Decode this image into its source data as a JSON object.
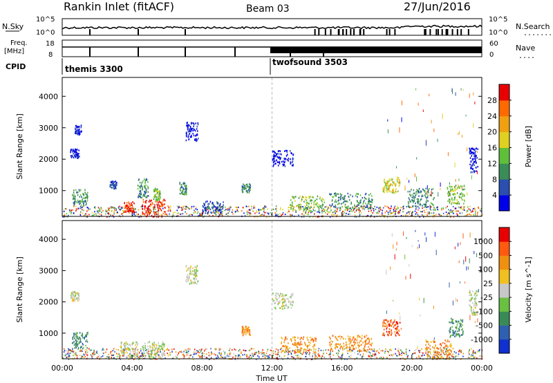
{
  "header": {
    "station": "Rankin Inlet (fitACF)",
    "beam": "Beam 03",
    "date": "27/Jun/2016"
  },
  "nsky_panel": {
    "left_label": "N.Sky",
    "right_label": "N.Search",
    "right_dots": "........",
    "left_ticks": [
      "10^5",
      "10^0"
    ],
    "right_ticks": [
      "10^5",
      "10^0"
    ]
  },
  "freq_panel": {
    "left_label_1": "Freq.",
    "left_label_2": "[MHz]",
    "right_label": "Nave",
    "right_dots": "....",
    "left_ticks": [
      "18",
      "8"
    ],
    "right_ticks": [
      "60",
      "0"
    ]
  },
  "cpid": {
    "label": "CPID",
    "modes": [
      {
        "name": "themis 3300",
        "start_hour": 0
      },
      {
        "name": "twofsound 3503",
        "start_hour": 12
      }
    ]
  },
  "chart_data": [
    {
      "type": "heatmap",
      "name": "power",
      "ylabel": "Slant Range [km]",
      "yticks": [
        "1000",
        "2000",
        "3000",
        "4000"
      ],
      "ylim": [
        180,
        4600
      ],
      "xlim": [
        0,
        24
      ],
      "colorbar": {
        "label": "Power [dB]",
        "ticks": [
          "4",
          "8",
          "12",
          "16",
          "20",
          "24",
          "28"
        ],
        "colors": [
          "#0000e8",
          "#2a4fb0",
          "#3b8c58",
          "#5fbf3a",
          "#e0d020",
          "#f0a010",
          "#ff6a00",
          "#e80000"
        ]
      },
      "blobs": [
        {
          "t": 0.7,
          "r": 2200,
          "dt": 0.5,
          "dr": 150,
          "lvl": 0
        },
        {
          "t": 0.9,
          "r": 2950,
          "dt": 0.4,
          "dr": 150,
          "lvl": 0
        },
        {
          "t": 1.0,
          "r": 800,
          "dt": 0.9,
          "dr": 250,
          "lvl": 2
        },
        {
          "t": 2.9,
          "r": 1200,
          "dt": 0.4,
          "dr": 120,
          "lvl": 1
        },
        {
          "t": 3.8,
          "r": 500,
          "dt": 0.6,
          "dr": 180,
          "lvl": 7
        },
        {
          "t": 4.6,
          "r": 1100,
          "dt": 0.6,
          "dr": 300,
          "lvl": 2
        },
        {
          "t": 5.2,
          "r": 450,
          "dt": 1.3,
          "dr": 300,
          "lvl": 7
        },
        {
          "t": 5.4,
          "r": 900,
          "dt": 0.4,
          "dr": 200,
          "lvl": 3
        },
        {
          "t": 6.9,
          "r": 1100,
          "dt": 0.4,
          "dr": 200,
          "lvl": 2
        },
        {
          "t": 7.4,
          "r": 2900,
          "dt": 0.7,
          "dr": 300,
          "lvl": 0
        },
        {
          "t": 8.6,
          "r": 500,
          "dt": 1.2,
          "dr": 200,
          "lvl": 1
        },
        {
          "t": 10.5,
          "r": 1100,
          "dt": 0.5,
          "dr": 150,
          "lvl": 2
        },
        {
          "t": 12.6,
          "r": 2050,
          "dt": 1.2,
          "dr": 250,
          "lvl": 0
        },
        {
          "t": 14.0,
          "r": 600,
          "dt": 2.0,
          "dr": 250,
          "lvl": 3
        },
        {
          "t": 16.5,
          "r": 700,
          "dt": 2.5,
          "dr": 250,
          "lvl": 2
        },
        {
          "t": 18.8,
          "r": 1200,
          "dt": 1.0,
          "dr": 250,
          "lvl": 4
        },
        {
          "t": 20.5,
          "r": 800,
          "dt": 1.5,
          "dr": 300,
          "lvl": 2
        },
        {
          "t": 22.5,
          "r": 900,
          "dt": 1.0,
          "dr": 300,
          "lvl": 3
        },
        {
          "t": 23.5,
          "r": 2000,
          "dt": 0.5,
          "dr": 400,
          "lvl": 0
        }
      ]
    },
    {
      "type": "heatmap",
      "name": "velocity",
      "ylabel": "Slant Range [km]",
      "yticks": [
        "1000",
        "2000",
        "3000",
        "4000"
      ],
      "ylim": [
        180,
        4600
      ],
      "xlim": [
        0,
        24
      ],
      "xticks": [
        "00:00",
        "04:00",
        "08:00",
        "12:00",
        "16:00",
        "20:00",
        "00:00"
      ],
      "xlabel": "Time UT",
      "colorbar": {
        "label": "Velocity [m s^-1]",
        "ticks": [
          "1000",
          "500",
          "100",
          "25",
          "-25",
          "-100",
          "-500",
          "-1000"
        ],
        "colors": [
          "#1030d0",
          "#2f5fb0",
          "#3a8a58",
          "#6ac040",
          "#c8c8c8",
          "#f0c020",
          "#f09010",
          "#ff5a10",
          "#e80000"
        ]
      },
      "blobs": [
        {
          "t": 0.7,
          "r": 2200,
          "dt": 0.5,
          "dr": 150,
          "lvl": 4
        },
        {
          "t": 1.0,
          "r": 800,
          "dt": 0.9,
          "dr": 250,
          "lvl": 2
        },
        {
          "t": 3.8,
          "r": 500,
          "dt": 1.0,
          "dr": 250,
          "lvl": 4
        },
        {
          "t": 5.2,
          "r": 450,
          "dt": 1.3,
          "dr": 300,
          "lvl": 4
        },
        {
          "t": 7.4,
          "r": 2900,
          "dt": 0.7,
          "dr": 300,
          "lvl": 4
        },
        {
          "t": 10.5,
          "r": 1100,
          "dt": 0.5,
          "dr": 150,
          "lvl": 6
        },
        {
          "t": 12.6,
          "r": 2050,
          "dt": 1.2,
          "dr": 250,
          "lvl": 4
        },
        {
          "t": 13.5,
          "r": 650,
          "dt": 2.0,
          "dr": 250,
          "lvl": 6
        },
        {
          "t": 16.5,
          "r": 700,
          "dt": 2.5,
          "dr": 250,
          "lvl": 6
        },
        {
          "t": 18.8,
          "r": 1200,
          "dt": 1.0,
          "dr": 250,
          "lvl": 7
        },
        {
          "t": 21.5,
          "r": 500,
          "dt": 1.5,
          "dr": 300,
          "lvl": 6
        },
        {
          "t": 22.5,
          "r": 1200,
          "dt": 0.8,
          "dr": 300,
          "lvl": 2
        },
        {
          "t": 23.5,
          "r": 2000,
          "dt": 0.5,
          "dr": 400,
          "lvl": 4
        }
      ]
    }
  ]
}
